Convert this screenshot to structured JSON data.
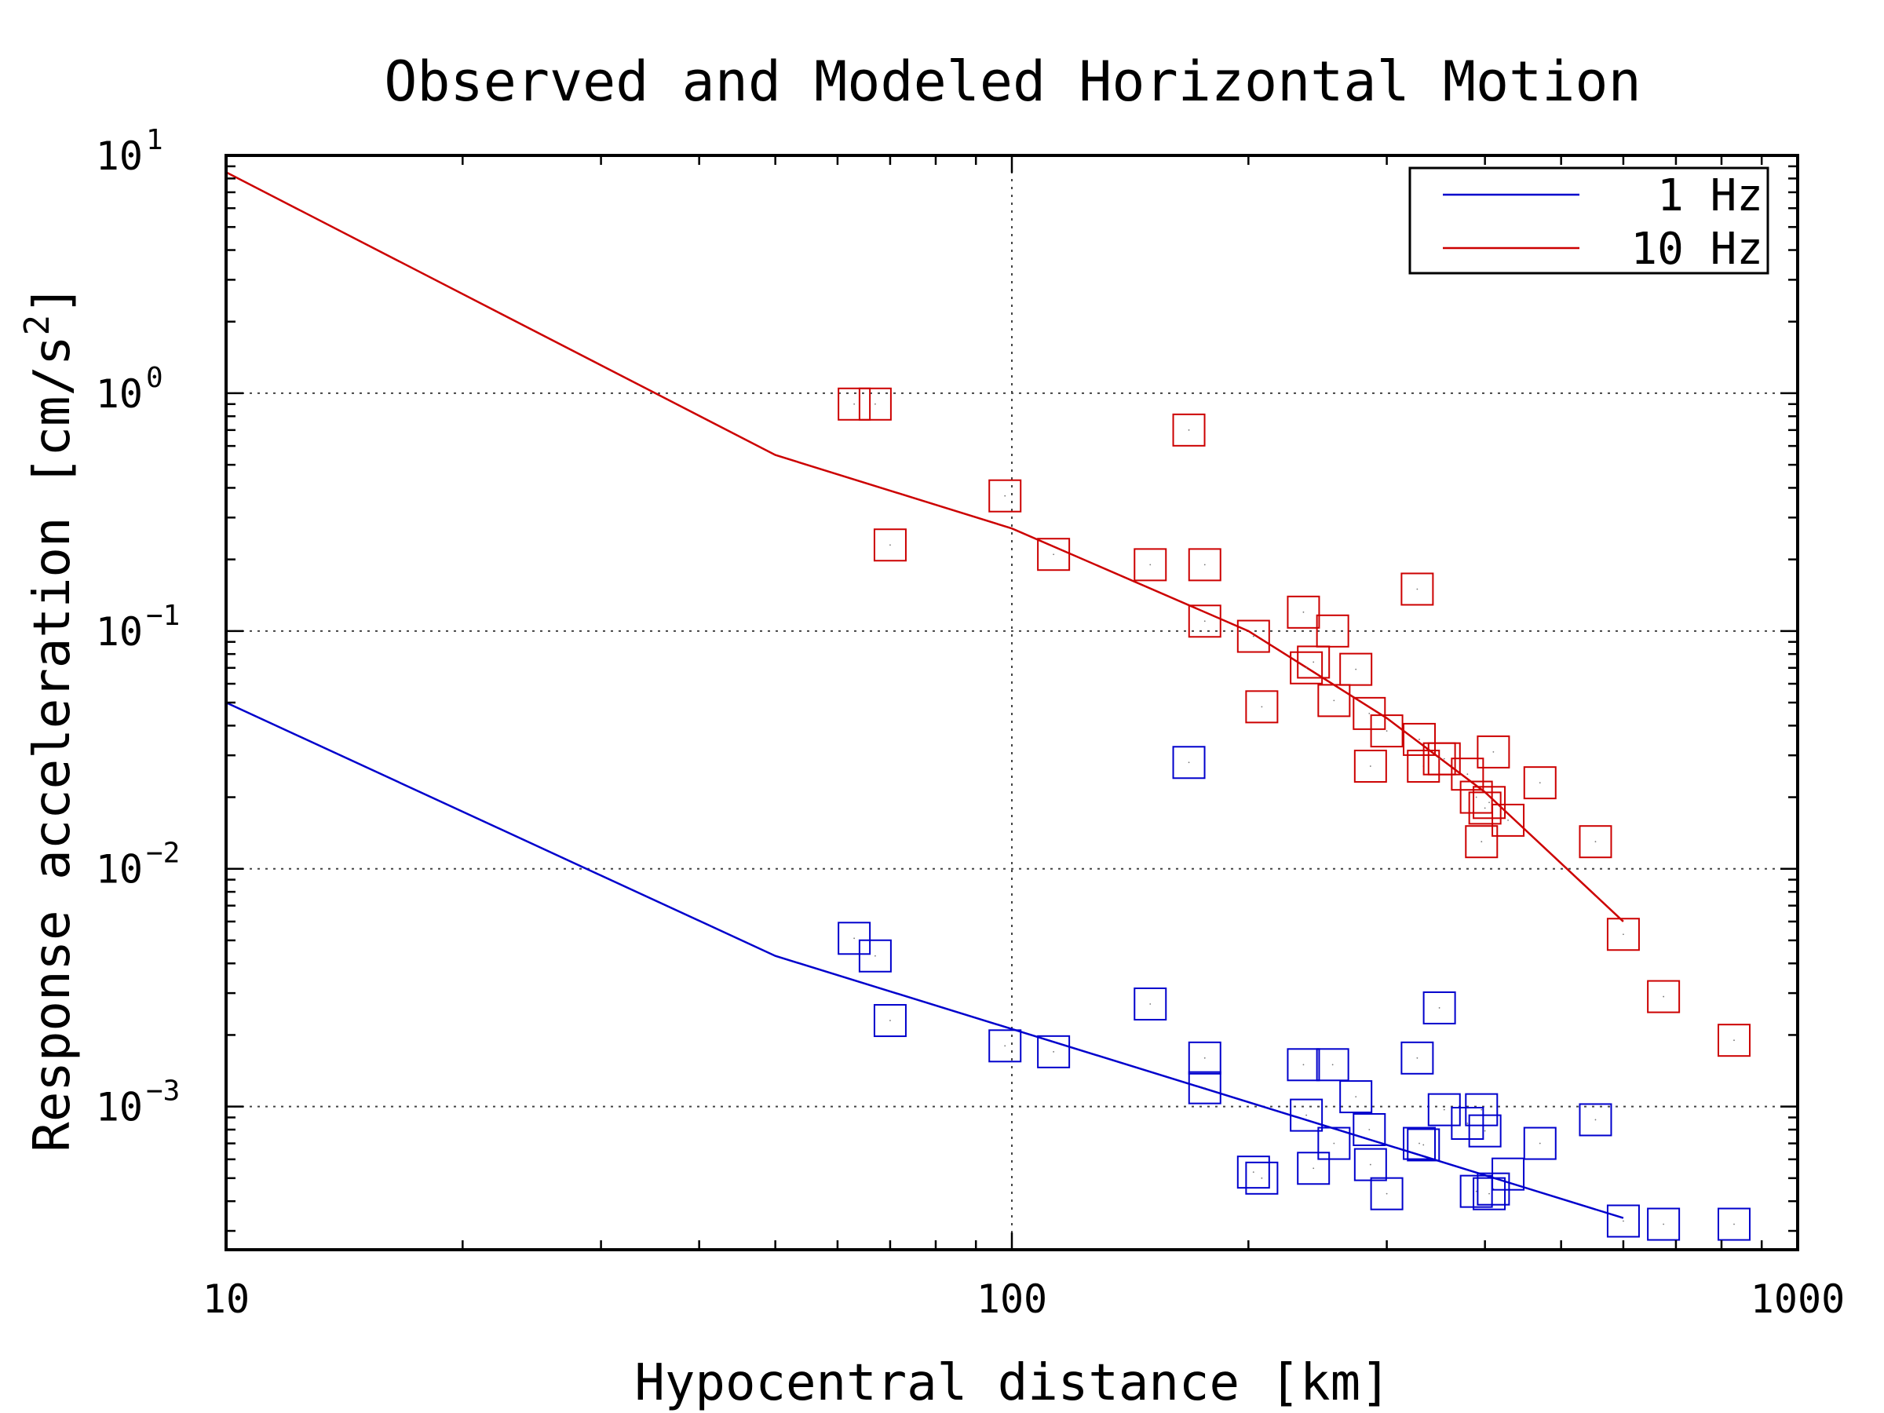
{
  "chart_data": {
    "type": "scatter",
    "title": "Observed and Modeled Horizontal Motion",
    "xlabel": "Hypocentral distance [km]",
    "ylabel": "Response acceleration [cm/s^2]",
    "xscale": "log",
    "yscale": "log",
    "xlim": [
      10,
      1000
    ],
    "ylim": [
      0.00025,
      10
    ],
    "grid": "dotted, at decades",
    "legend_position": "top-right",
    "x_ticks": [
      {
        "value": 10,
        "label": "10"
      },
      {
        "value": 100,
        "label": "100"
      },
      {
        "value": 1000,
        "label": "1000"
      }
    ],
    "y_ticks": [
      {
        "value": 10,
        "base": "10",
        "exp": "1"
      },
      {
        "value": 1,
        "base": "10",
        "exp": "0"
      },
      {
        "value": 0.1,
        "base": "10",
        "exp": "−1"
      },
      {
        "value": 0.01,
        "base": "10",
        "exp": "−2"
      },
      {
        "value": 0.001,
        "base": "10",
        "exp": "−3"
      }
    ],
    "series": [
      {
        "name": "1 Hz",
        "color": "#0000cc",
        "model": {
          "x": [
            10,
            50,
            600
          ],
          "y": [
            0.05,
            0.0043,
            0.00034
          ]
        },
        "observed": [
          [
            63,
            0.0051
          ],
          [
            67,
            0.0043
          ],
          [
            70,
            0.0023
          ],
          [
            98,
            0.0018
          ],
          [
            113,
            0.0017
          ],
          [
            150,
            0.0027
          ],
          [
            168,
            0.028
          ],
          [
            176,
            0.0016
          ],
          [
            176,
            0.0012
          ],
          [
            203,
            0.00053
          ],
          [
            208,
            0.0005
          ],
          [
            235,
            0.0015
          ],
          [
            237,
            0.00092
          ],
          [
            242,
            0.00055
          ],
          [
            256,
            0.0015
          ],
          [
            257,
            0.0007
          ],
          [
            274,
            0.0011
          ],
          [
            285,
            0.0008
          ],
          [
            286,
            0.00057
          ],
          [
            300,
            0.00043
          ],
          [
            328,
            0.0016
          ],
          [
            330,
            0.0007
          ],
          [
            334,
            0.00069
          ],
          [
            350,
            0.0026
          ],
          [
            355,
            0.00097
          ],
          [
            380,
            0.00085
          ],
          [
            390,
            0.00044
          ],
          [
            396,
            0.00097
          ],
          [
            400,
            0.00079
          ],
          [
            405,
            0.00043
          ],
          [
            410,
            0.00045
          ],
          [
            428,
            0.00052
          ],
          [
            470,
            0.0007
          ],
          [
            553,
            0.00088
          ],
          [
            600,
            0.00033
          ],
          [
            675,
            0.00032
          ],
          [
            830,
            0.00032
          ]
        ]
      },
      {
        "name": "10 Hz",
        "color": "#cc0000",
        "model": {
          "x": [
            10,
            50,
            100,
            200,
            300,
            400,
            600
          ],
          "y": [
            8.5,
            0.55,
            0.27,
            0.1,
            0.043,
            0.021,
            0.006
          ]
        },
        "observed": [
          [
            63,
            0.9
          ],
          [
            67,
            0.9
          ],
          [
            70,
            0.23
          ],
          [
            98,
            0.37
          ],
          [
            113,
            0.21
          ],
          [
            150,
            0.19
          ],
          [
            168,
            0.7
          ],
          [
            176,
            0.19
          ],
          [
            176,
            0.11
          ],
          [
            203,
            0.095
          ],
          [
            208,
            0.048
          ],
          [
            235,
            0.12
          ],
          [
            237,
            0.07
          ],
          [
            242,
            0.074
          ],
          [
            256,
            0.1
          ],
          [
            257,
            0.051
          ],
          [
            274,
            0.069
          ],
          [
            285,
            0.045
          ],
          [
            286,
            0.027
          ],
          [
            300,
            0.038
          ],
          [
            328,
            0.15
          ],
          [
            330,
            0.035
          ],
          [
            334,
            0.027
          ],
          [
            350,
            0.029
          ],
          [
            355,
            0.029
          ],
          [
            380,
            0.025
          ],
          [
            390,
            0.02
          ],
          [
            396,
            0.013
          ],
          [
            400,
            0.018
          ],
          [
            405,
            0.019
          ],
          [
            410,
            0.031
          ],
          [
            428,
            0.016
          ],
          [
            470,
            0.023
          ],
          [
            553,
            0.013
          ],
          [
            600,
            0.0053
          ],
          [
            675,
            0.0029
          ],
          [
            830,
            0.0019
          ]
        ]
      }
    ]
  }
}
